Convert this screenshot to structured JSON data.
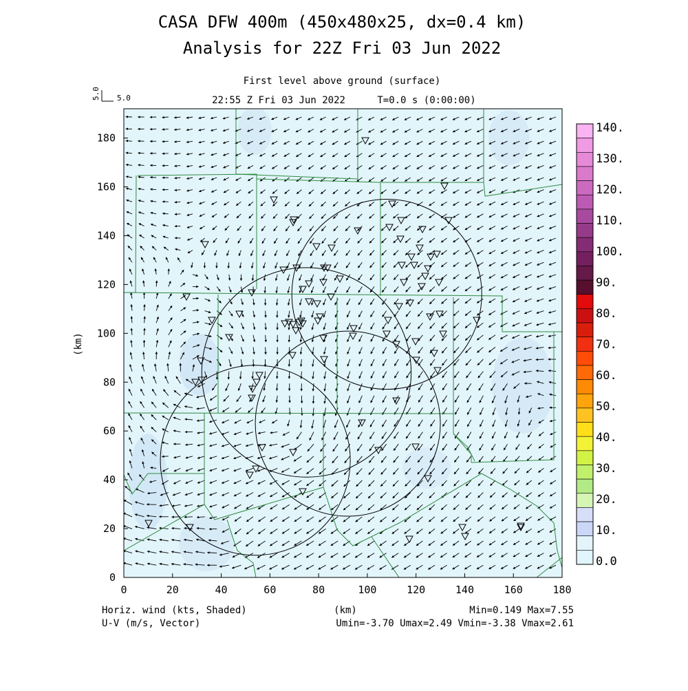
{
  "header": {
    "title_line1": "CASA DFW 400m (450x480x25, dx=0.4 km)",
    "title_line2": "Analysis for 22Z Fri 03 Jun 2022",
    "subtitle": "First level above ground (surface)",
    "valid_time": "22:55 Z Fri 03 Jun 2022",
    "forecast_time": "T=0.0 s (0:00:00)",
    "ref_vector_label": "5.0",
    "ref_vector_side_label": "5.0"
  },
  "footer": {
    "left_line1": "Horiz. wind (kts, Shaded)",
    "left_line2": "U-V (m/s, Vector)",
    "xunit": "(km)",
    "minmax": "Min=0.149 Max=7.55",
    "uv_range": "Umin=-3.70 Umax=2.49 Vmin=-3.38 Vmax=2.61"
  },
  "chart_data": {
    "type": "heatmap",
    "ylabel": "(km)",
    "xlabel": "(km)",
    "xlim": [
      0,
      180
    ],
    "ylim": [
      0,
      192
    ],
    "x_ticks": [
      "0",
      "20",
      "40",
      "60",
      "80",
      "100",
      "120",
      "140",
      "160",
      "180"
    ],
    "y_ticks": [
      "0",
      "20",
      "40",
      "60",
      "80",
      "100",
      "120",
      "140",
      "160",
      "180"
    ],
    "field_min": 0.149,
    "field_max": 7.55,
    "u_range": [
      -3.7,
      2.49
    ],
    "v_range": [
      -3.38,
      2.61
    ],
    "colorbar": {
      "labels": [
        "140.",
        "130.",
        "120.",
        "110.",
        "100.",
        "90.",
        "80.",
        "70.",
        "60.",
        "50.",
        "40.",
        "30.",
        "20.",
        "10.",
        "0.0"
      ],
      "colors": [
        "#f9b4f1",
        "#f09ae4",
        "#e68ad8",
        "#da7acb",
        "#cc6ac0",
        "#bd5bb4",
        "#a84a9f",
        "#963b8a",
        "#852d74",
        "#74205f",
        "#651a4a",
        "#560f2c",
        "#e20a0a",
        "#ca1010",
        "#d81f0c",
        "#f03010",
        "#ff4d07",
        "#ff6906",
        "#ff8a05",
        "#ffa40c",
        "#ffc321",
        "#ffde1a",
        "#f3f236",
        "#d2f245",
        "#c1f06c",
        "#b2ea86",
        "#d5f5b4",
        "#d6def9",
        "#cbd7f7",
        "#e4f4fb",
        "#e0f5fc"
      ]
    },
    "range_rings": [
      {
        "cx": 108,
        "cy": 116,
        "r": 39
      },
      {
        "cx": 75,
        "cy": 84,
        "r": 43
      },
      {
        "cx": 92,
        "cy": 63,
        "r": 38
      },
      {
        "cx": 54,
        "cy": 48,
        "r": 39
      }
    ]
  }
}
